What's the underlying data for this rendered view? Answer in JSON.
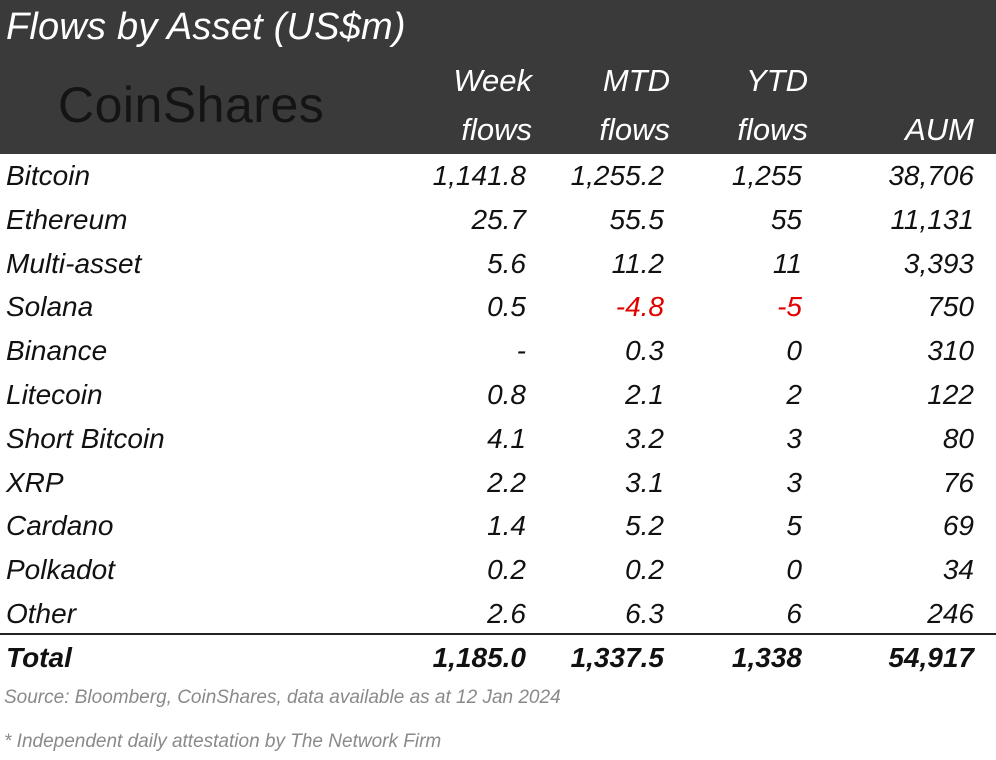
{
  "title": "Flows by Asset (US$m)",
  "logo_text": "CoinShares",
  "columns": {
    "week": [
      "Week",
      "flows"
    ],
    "mtd": [
      "MTD",
      "flows"
    ],
    "ytd": [
      "YTD",
      "flows"
    ],
    "aum": [
      "",
      "AUM"
    ]
  },
  "rows": [
    {
      "name": "Bitcoin",
      "week": "1,141.8",
      "mtd": "1,255.2",
      "ytd": "1,255",
      "aum": "38,706"
    },
    {
      "name": "Ethereum",
      "week": "25.7",
      "mtd": "55.5",
      "ytd": "55",
      "aum": "11,131"
    },
    {
      "name": "Multi-asset",
      "week": "5.6",
      "mtd": "11.2",
      "ytd": "11",
      "aum": "3,393"
    },
    {
      "name": "Solana",
      "week": "0.5",
      "mtd": "-4.8",
      "ytd": "-5",
      "aum": "750"
    },
    {
      "name": "Binance",
      "week": "-",
      "mtd": "0.3",
      "ytd": "0",
      "aum": "310"
    },
    {
      "name": "Litecoin",
      "week": "0.8",
      "mtd": "2.1",
      "ytd": "2",
      "aum": "122"
    },
    {
      "name": "Short Bitcoin",
      "week": "4.1",
      "mtd": "3.2",
      "ytd": "3",
      "aum": "80"
    },
    {
      "name": "XRP",
      "week": "2.2",
      "mtd": "3.1",
      "ytd": "3",
      "aum": "76"
    },
    {
      "name": "Cardano",
      "week": "1.4",
      "mtd": "5.2",
      "ytd": "5",
      "aum": "69"
    },
    {
      "name": "Polkadot",
      "week": "0.2",
      "mtd": "0.2",
      "ytd": "0",
      "aum": "34"
    },
    {
      "name": "Other",
      "week": "2.6",
      "mtd": "6.3",
      "ytd": "6",
      "aum": "246"
    }
  ],
  "total": {
    "name": "Total",
    "week": "1,185.0",
    "mtd": "1,337.5",
    "ytd": "1,338",
    "aum": "54,917"
  },
  "source": "Source: Bloomberg, CoinShares, data available as at 12 Jan 2024",
  "footnote": "* Independent daily attestation by The Network Firm",
  "colors": {
    "header_bg": "#3a3a3a",
    "negative": "#e00000",
    "muted": "#8a8a8a"
  }
}
